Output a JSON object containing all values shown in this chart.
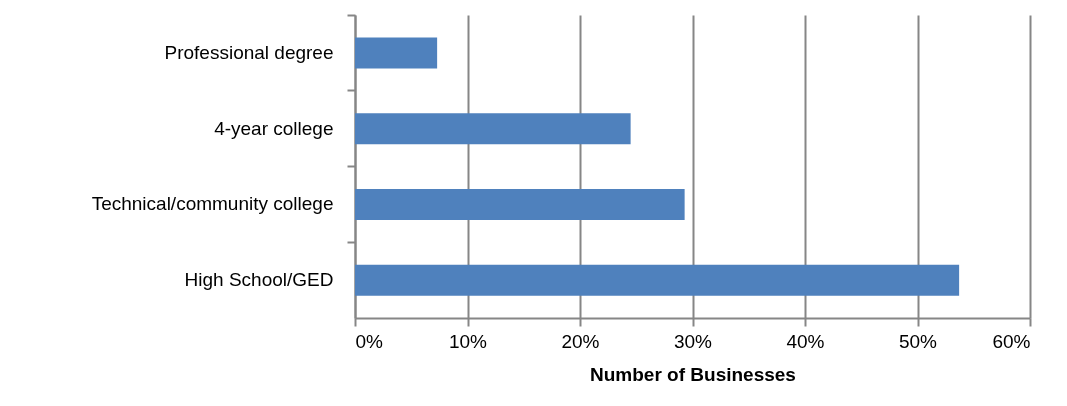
{
  "chart_data": {
    "type": "bar",
    "orientation": "horizontal",
    "xlabel": "Number of Businesses",
    "categories": [
      "Professional degree",
      "4-year college",
      "Technical/community college",
      "High School/GED"
    ],
    "values": [
      7.3,
      24.5,
      29.3,
      53.7
    ],
    "color": "#4f81bd",
    "xlim": [
      0,
      60
    ],
    "xticks": [
      {
        "value": 0,
        "label": "0%"
      },
      {
        "value": 10,
        "label": "10%"
      },
      {
        "value": 20,
        "label": "20%"
      },
      {
        "value": 30,
        "label": "30%"
      },
      {
        "value": 40,
        "label": "40%"
      },
      {
        "value": 50,
        "label": "50%"
      },
      {
        "value": 60,
        "label": "60%"
      }
    ],
    "grid": "x"
  }
}
